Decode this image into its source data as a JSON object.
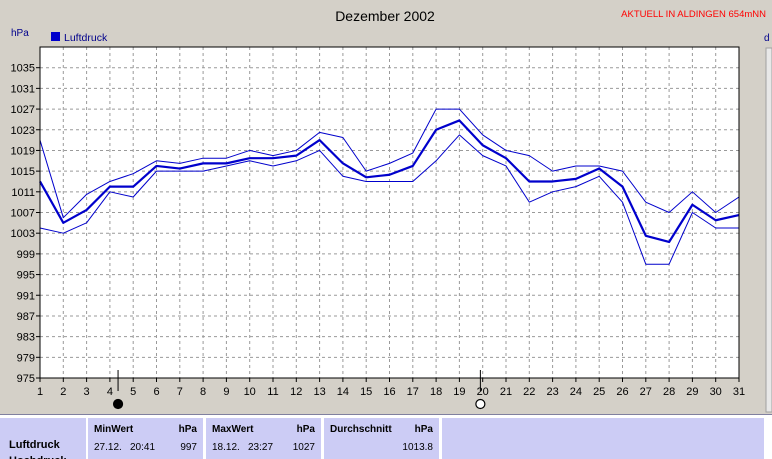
{
  "header": {
    "corner_label": "AKTUELL IN ALDINGEN 654mNN",
    "right_edge_label": "d"
  },
  "chart_data": {
    "type": "line",
    "title": "Dezember 2002",
    "ylabel": "hPa",
    "ylim": [
      975,
      1039
    ],
    "yticks": [
      975,
      979,
      983,
      987,
      991,
      995,
      999,
      1003,
      1007,
      1011,
      1015,
      1019,
      1023,
      1027,
      1031,
      1035
    ],
    "x": [
      1,
      2,
      3,
      4,
      5,
      6,
      7,
      8,
      9,
      10,
      11,
      12,
      13,
      14,
      15,
      16,
      17,
      18,
      19,
      20,
      21,
      22,
      23,
      24,
      25,
      26,
      27,
      28,
      29,
      30,
      31
    ],
    "grid": true,
    "legend": {
      "placement": "top-left",
      "label": "Luftdruck",
      "color": "#0000cc"
    },
    "series": [
      {
        "name": "Luftdruck",
        "role": "mean",
        "color": "#0000cc",
        "values": [
          1013,
          1005,
          1007.5,
          1012,
          1012,
          1016,
          1015.5,
          1016.5,
          1016.5,
          1017.5,
          1017.5,
          1018,
          1021,
          1016.5,
          1013.8,
          1014.3,
          1016,
          1023,
          1024.8,
          1020,
          1017.5,
          1013,
          1013,
          1013.5,
          1015.5,
          1012,
          1002.5,
          1001.3,
          1008.5,
          1005.5,
          1006.5
        ]
      },
      {
        "role": "max",
        "color": "#0000cc",
        "values": [
          1021,
          1006,
          1010.5,
          1013,
          1014.5,
          1017,
          1016.5,
          1017.5,
          1017.5,
          1019,
          1018,
          1019,
          1022.5,
          1021.5,
          1015,
          1016.5,
          1018.5,
          1027,
          1027,
          1022,
          1019,
          1018,
          1015,
          1016,
          1016,
          1015,
          1009,
          1007,
          1011,
          1007,
          1010
        ]
      },
      {
        "role": "min",
        "color": "#0000cc",
        "values": [
          1004,
          1003,
          1005,
          1011,
          1010,
          1015,
          1015,
          1015,
          1016,
          1017,
          1016,
          1017,
          1019,
          1014,
          1013,
          1013,
          1013,
          1017,
          1022,
          1018,
          1016,
          1009,
          1011,
          1012,
          1014,
          1009,
          997,
          997,
          1007,
          1004,
          1004
        ]
      }
    ],
    "markers": [
      {
        "label": "new-moon",
        "x": 4.35
      },
      {
        "label": "full-moon",
        "x": 19.9
      }
    ]
  },
  "stats": {
    "row_label": "Luftdruck",
    "row_label2": "Hochdruck",
    "min": {
      "header": "MinWert",
      "unit": "hPa",
      "date": "27.12.",
      "time": "20:41",
      "value": "997"
    },
    "max": {
      "header": "MaxWert",
      "unit": "hPa",
      "date": "18.12.",
      "time": "23:27",
      "value": "1027"
    },
    "avg": {
      "header": "Durchschnitt",
      "unit": "hPa",
      "value": "1013.8"
    }
  }
}
